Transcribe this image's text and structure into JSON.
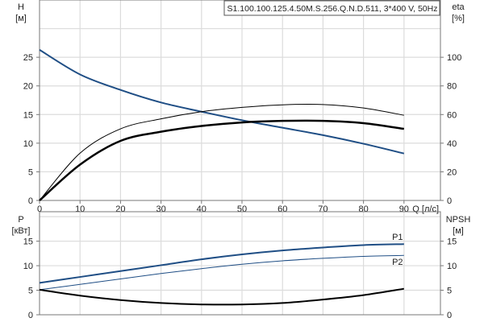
{
  "chart_data": [
    {
      "type": "line",
      "title": "S1.100.100.125.4.50M.S.256.Q.N.D.511, 3*400 V, 50Hz",
      "xlabel": "Q [л/с]",
      "ylabel_left": [
        "H",
        "[м]"
      ],
      "ylabel_right": [
        "eta",
        "[%]"
      ],
      "xlim": [
        0,
        99
      ],
      "ylim_left": [
        0,
        35
      ],
      "ylim_right": [
        0,
        140
      ],
      "xticks": [
        0,
        10,
        20,
        30,
        40,
        50,
        60,
        70,
        80,
        90
      ],
      "yticks_left": [
        0,
        5,
        10,
        15,
        20,
        25
      ],
      "yticks_right": [
        0,
        20,
        40,
        60,
        80,
        100
      ],
      "grid": true,
      "x": [
        0,
        10,
        20,
        30,
        40,
        50,
        60,
        70,
        80,
        90
      ],
      "series": [
        {
          "axis": "left",
          "color": "#1f4e85",
          "width": 2,
          "values": [
            26.3,
            22,
            19.3,
            17.1,
            15.5,
            14,
            12.7,
            11.4,
            9.9,
            8.2
          ]
        },
        {
          "axis": "right",
          "color": "#000000",
          "width": 1,
          "values": [
            0,
            33,
            50,
            57,
            62,
            65,
            66.8,
            67,
            64.6,
            59.5
          ]
        },
        {
          "axis": "right",
          "color": "#000000",
          "width": 2.5,
          "values": [
            0,
            25,
            41.6,
            48,
            52,
            54.5,
            55.6,
            55.6,
            54,
            50
          ]
        }
      ]
    },
    {
      "type": "line",
      "ylabel_left": [
        "P",
        "[кВт]"
      ],
      "ylabel_right": [
        "NPSH",
        "[м]"
      ],
      "xlim": [
        0,
        99
      ],
      "ylim_left": [
        0,
        21
      ],
      "ylim_right": [
        0,
        21
      ],
      "xticks": [
        0,
        10,
        20,
        30,
        40,
        50,
        60,
        70,
        80,
        90
      ],
      "yticks_left": [
        0,
        5,
        10,
        15
      ],
      "yticks_right": [
        0,
        5,
        10,
        15
      ],
      "grid": true,
      "x": [
        0,
        10,
        20,
        30,
        40,
        50,
        60,
        70,
        80,
        90
      ],
      "series": [
        {
          "name": "P1",
          "axis": "left",
          "color": "#1f4e85",
          "width": 2,
          "values": [
            6.5,
            7.7,
            8.9,
            10.1,
            11.3,
            12.3,
            13.1,
            13.7,
            14.2,
            14.4
          ]
        },
        {
          "name": "P2",
          "axis": "left",
          "color": "#1f4e85",
          "width": 1,
          "values": [
            5.1,
            6.2,
            7.3,
            8.4,
            9.4,
            10.3,
            11,
            11.5,
            11.9,
            12.1
          ]
        },
        {
          "axis": "right",
          "color": "#000000",
          "width": 2,
          "values": [
            5.1,
            3.9,
            3,
            2.4,
            2.1,
            2.1,
            2.4,
            3.1,
            4,
            5.3
          ]
        }
      ]
    }
  ]
}
